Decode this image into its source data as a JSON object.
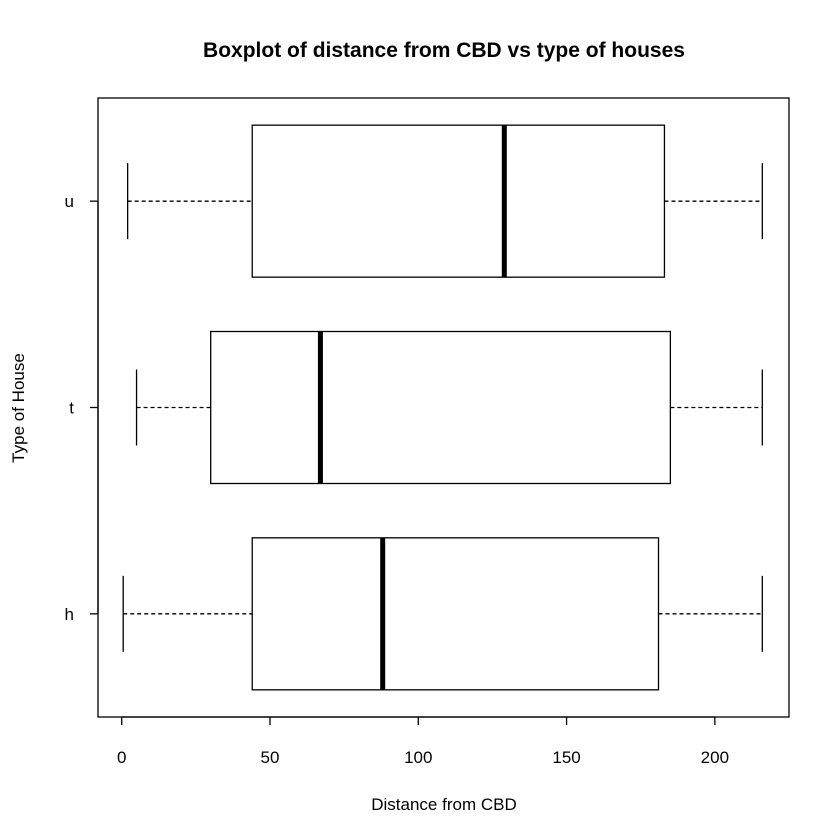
{
  "chart_data": {
    "type": "boxplot",
    "title": "Boxplot of distance from CBD vs type of houses",
    "xlabel": "Distance from CBD",
    "ylabel": "Type of House",
    "xlim": [
      -8,
      225
    ],
    "x_ticks": [
      0,
      50,
      100,
      150,
      200
    ],
    "categories": [
      "h",
      "t",
      "u"
    ],
    "boxes": [
      {
        "category": "h",
        "min": 0.5,
        "q1": 44,
        "median": 88,
        "q3": 181,
        "max": 216
      },
      {
        "category": "t",
        "min": 5,
        "q1": 30,
        "median": 67,
        "q3": 185,
        "max": 216
      },
      {
        "category": "u",
        "min": 2,
        "q1": 44,
        "median": 129,
        "q3": 183,
        "max": 216
      }
    ],
    "orientation": "horizontal",
    "grid": false,
    "colors": {
      "box_fill": "#ffffff",
      "stroke": "#000000"
    }
  }
}
